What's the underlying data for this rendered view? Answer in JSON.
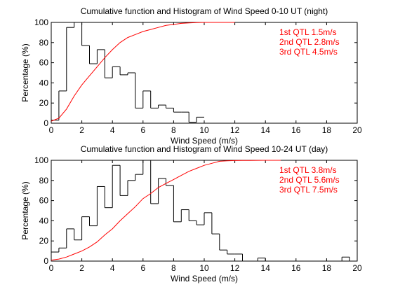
{
  "chart_data": [
    {
      "type": "bar",
      "title": "Cumulative function and Histogram of Wind Speed 0-10 UT (night)",
      "xlabel": "Wind Speed (m/s)",
      "ylabel": "Percentage (%)",
      "xlim": [
        0,
        20
      ],
      "ylim": [
        0,
        100
      ],
      "xticks": [
        "0",
        "2",
        "4",
        "6",
        "8",
        "10",
        "12",
        "14",
        "16",
        "18",
        "20"
      ],
      "yticks": [
        "0",
        "20",
        "40",
        "60",
        "80",
        "100"
      ],
      "grid": false,
      "histogram": {
        "bin_edges": [
          0,
          0.5,
          1,
          1.5,
          2,
          2.5,
          3,
          3.5,
          4,
          4.5,
          5,
          5.5,
          6,
          6.5,
          7,
          7.5,
          8,
          8.5,
          9,
          9.5,
          10
        ],
        "values": [
          3,
          32,
          95,
          100,
          77,
          59,
          73,
          45,
          56,
          48,
          50,
          15,
          32,
          15,
          18,
          15,
          11,
          11,
          1,
          6
        ]
      },
      "cumulative": {
        "x": [
          0,
          0.5,
          1,
          1.5,
          2,
          2.5,
          3,
          3.5,
          4,
          4.5,
          5,
          5.5,
          6,
          6.5,
          7,
          7.5,
          8,
          8.5,
          9,
          9.5,
          10,
          11,
          12
        ],
        "y": [
          2,
          5,
          14,
          27,
          38,
          47,
          56,
          65,
          73,
          80,
          85,
          88,
          91,
          93,
          95,
          97,
          98,
          99,
          99.5,
          99.8,
          100,
          100,
          100
        ]
      },
      "annotations": [
        {
          "text": "1st QTL 1.5m/s",
          "color": "#ff0000"
        },
        {
          "text": "2nd QTL 2.8m/s",
          "color": "#ff0000"
        },
        {
          "text": "3rd QTL 4.5m/s",
          "color": "#ff0000"
        }
      ],
      "colors": {
        "histogram": "#000000",
        "cumulative": "#ff0000"
      }
    },
    {
      "type": "bar",
      "title": "Cumulative function and Histogram of Wind Speed 10-24 UT (day)",
      "xlabel": "Wind Speed (m/s)",
      "ylabel": "Percentage (%)",
      "xlim": [
        0,
        20
      ],
      "ylim": [
        0,
        100
      ],
      "xticks": [
        "0",
        "2",
        "4",
        "6",
        "8",
        "10",
        "12",
        "14",
        "16",
        "18",
        "20"
      ],
      "yticks": [
        "0",
        "20",
        "40",
        "60",
        "80",
        "100"
      ],
      "grid": false,
      "histogram": {
        "bin_edges": [
          0,
          0.5,
          1,
          1.5,
          2,
          2.5,
          3,
          3.5,
          4,
          4.5,
          5,
          5.5,
          6,
          6.5,
          7,
          7.5,
          8,
          8.5,
          9,
          9.5,
          10,
          10.5,
          11,
          11.5,
          12,
          12.5,
          13,
          13.5,
          14,
          14.5,
          15,
          15.5,
          16,
          16.5,
          17,
          17.5,
          18,
          18.5,
          19,
          19.5,
          20
        ],
        "values": [
          9,
          13,
          32,
          21,
          44,
          35,
          74,
          53,
          95,
          65,
          80,
          86,
          100,
          57,
          82,
          75,
          39,
          51,
          40,
          36,
          48,
          27,
          11,
          7,
          7,
          0,
          0,
          3,
          0,
          0,
          0,
          0,
          0,
          0,
          0,
          0,
          0,
          0,
          4,
          0
        ]
      },
      "cumulative": {
        "x": [
          0,
          0.5,
          1,
          1.5,
          2,
          2.5,
          3,
          3.5,
          4,
          4.5,
          5,
          5.5,
          6,
          6.5,
          7,
          7.5,
          8,
          8.5,
          9,
          9.5,
          10,
          10.5,
          11,
          11.5,
          12,
          12.5,
          13,
          13.5,
          14,
          14.5,
          15
        ],
        "y": [
          1,
          2,
          4,
          7,
          10,
          14,
          19,
          26,
          32,
          40,
          47,
          54,
          62,
          67,
          73,
          77,
          81,
          85,
          89,
          92,
          95,
          97,
          99,
          99.5,
          99.7,
          99.8,
          99.8,
          99.9,
          100,
          100,
          100
        ]
      },
      "annotations": [
        {
          "text": "1st QTL 3.8m/s",
          "color": "#ff0000"
        },
        {
          "text": "2nd QTL 5.6m/s",
          "color": "#ff0000"
        },
        {
          "text": "3rd QTL 7.5m/s",
          "color": "#ff0000"
        }
      ],
      "colors": {
        "histogram": "#000000",
        "cumulative": "#ff0000"
      }
    }
  ]
}
